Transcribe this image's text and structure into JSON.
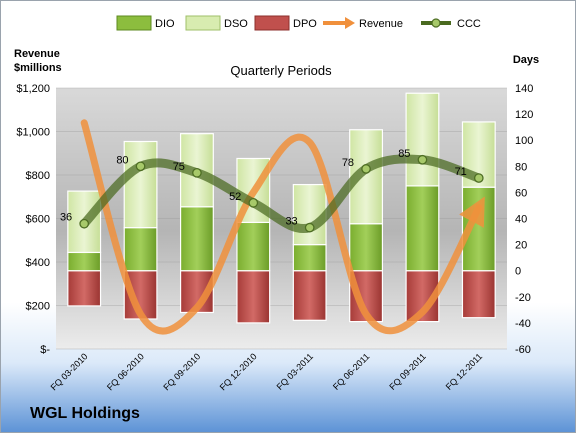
{
  "chart_data": {
    "type": "bar",
    "company": "WGL Holdings",
    "subtitle": "Quarterly Periods",
    "left_axis_title": [
      "Revenue",
      "$millions"
    ],
    "right_axis_title": "Days",
    "legend_position": "top",
    "categories": [
      "FQ 03-2010",
      "FQ 06-2010",
      "FQ 09-2010",
      "FQ 12-2010",
      "FQ 03-2011",
      "FQ 06-2011",
      "FQ 09-2011",
      "FQ 12-2011"
    ],
    "left_axis": {
      "min": 0,
      "max": 1200,
      "step": 200,
      "ticks": [
        "$-",
        "$200",
        "$400",
        "$600",
        "$800",
        "$1,000",
        "$1,200"
      ]
    },
    "right_axis": {
      "min": -60,
      "max": 140,
      "step": 20,
      "ticks": [
        "-60",
        "-40",
        "-20",
        "0",
        "20",
        "40",
        "60",
        "80",
        "100",
        "120",
        "140"
      ]
    },
    "series": [
      {
        "name": "DIO",
        "kind": "stacked-bar",
        "color": "#8cbd3e",
        "values": [
          14,
          33,
          49,
          37,
          20,
          36,
          65,
          64
        ]
      },
      {
        "name": "DSO",
        "kind": "stacked-bar",
        "color": "#d8ecb0",
        "values": [
          47,
          66,
          56,
          49,
          46,
          72,
          71,
          50
        ]
      },
      {
        "name": "DPO",
        "kind": "negative-bar",
        "color": "#c0504d",
        "values": [
          -27,
          -37,
          -32,
          -40,
          -38,
          -39,
          -39,
          -36
        ]
      },
      {
        "name": "Revenue",
        "kind": "line-arrow",
        "color": "#f0903c",
        "values": [
          1040,
          160,
          190,
          720,
          950,
          160,
          170,
          650
        ]
      },
      {
        "name": "CCC",
        "kind": "line-markers",
        "color": "#5a7a2a",
        "values": [
          36,
          80,
          75,
          52,
          33,
          78,
          85,
          71
        ]
      }
    ],
    "data_labels": [
      "36",
      "80",
      "75",
      "52",
      "33",
      "78",
      "85",
      "71"
    ]
  }
}
